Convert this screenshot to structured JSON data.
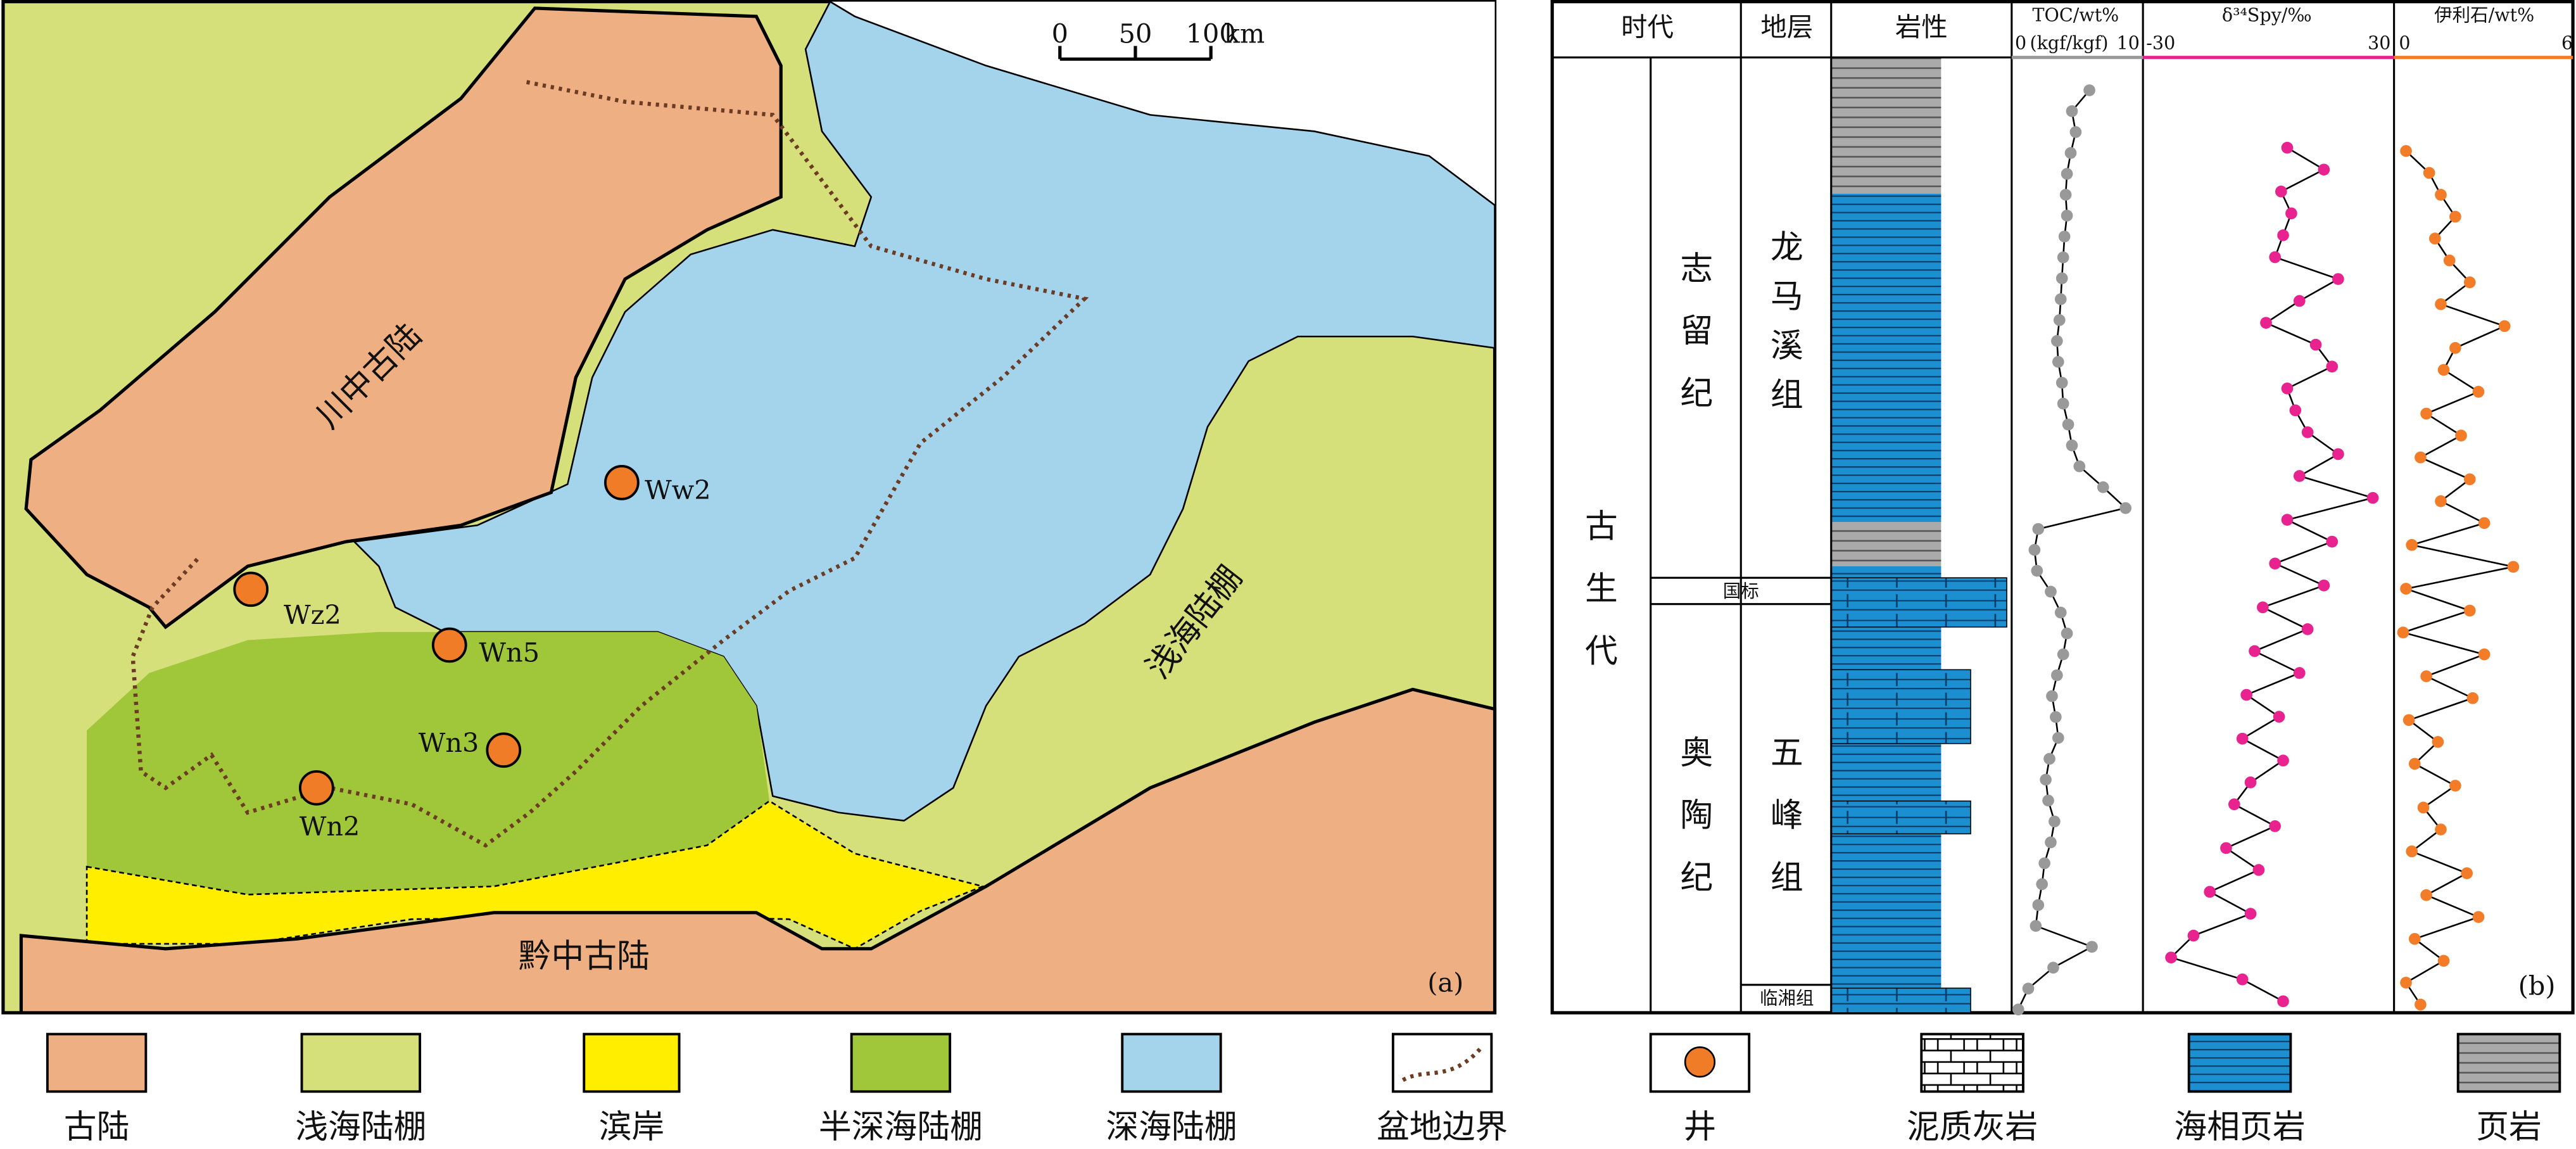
{
  "map": {
    "panel": "(a)",
    "regions": {
      "chuanzhong": "川中古陆",
      "shallow": "浅海陆棚",
      "qianzhong": "黔中古陆"
    },
    "wells": [
      "Ww2",
      "Wz2",
      "Wn5",
      "Wn3",
      "Wn2"
    ],
    "scale": {
      "ticks": [
        0,
        50,
        100
      ],
      "unit": "km"
    }
  },
  "column": {
    "panel": "(b)",
    "headers": [
      "时代",
      "地层",
      "岩性"
    ],
    "era": "古生代",
    "periods": [
      "志留纪",
      "奥陶纪"
    ],
    "formations": [
      "龙马溪组",
      "国标",
      "五峰组",
      "临湘组"
    ],
    "profiles": [
      {
        "title": "TOC/wt%",
        "unit": "(kgf/kgf)",
        "xlim": [
          0,
          10
        ],
        "color": "#999999",
        "values": [
          6.1,
          4.7,
          5.0,
          4.6,
          4.3,
          4.2,
          4.3,
          4.1,
          4.0,
          3.9,
          3.8,
          3.7,
          3.5,
          3.6,
          3.9,
          4.0,
          4.4,
          4.7,
          5.3,
          7.2,
          9.0,
          2.0,
          1.7,
          1.9,
          3.0,
          3.8,
          4.3,
          4.0,
          3.5,
          3.1,
          3.4,
          3.6,
          2.9,
          2.6,
          2.8,
          3.3,
          3.0,
          2.5,
          2.3,
          2.0,
          1.8,
          6.3,
          3.2,
          1.2,
          0.4
        ]
      },
      {
        "title": "δ³⁴Spy/‰",
        "xlim": [
          -30,
          30
        ],
        "color": "#e8238f",
        "values": [
          5,
          14,
          3.5,
          6,
          4,
          2,
          17.5,
          8,
          -0.2,
          12,
          16,
          5,
          7,
          10,
          17.5,
          8,
          26,
          5,
          16,
          2,
          14,
          -1,
          10,
          -3,
          8,
          -5,
          3,
          -6,
          4,
          -4,
          -8,
          2,
          -10,
          -2,
          -14,
          -4,
          -18,
          -23.5,
          -6,
          4
        ]
      },
      {
        "title": "伊利石/wt%",
        "xlim": [
          0,
          6
        ],
        "color": "#f27c28",
        "values": [
          0.3,
          1.1,
          1.5,
          2,
          1.3,
          1.8,
          2.5,
          1.5,
          3.7,
          2,
          1.6,
          2.8,
          1,
          2.2,
          0.8,
          2.5,
          1.5,
          3,
          0.5,
          4,
          0.3,
          2.5,
          0.2,
          3,
          1,
          2.6,
          0.4,
          1.4,
          0.6,
          2,
          0.9,
          1.5,
          0.5,
          2.4,
          1,
          2.8,
          0.6,
          1.6,
          0.3,
          0.8
        ]
      }
    ]
  },
  "legend": [
    "古陆",
    "浅海陆棚",
    "滨岸",
    "半深海陆棚",
    "深海陆棚",
    "盆地边界",
    "井",
    "泥质灰岩",
    "海相页岩",
    "页岩"
  ]
}
